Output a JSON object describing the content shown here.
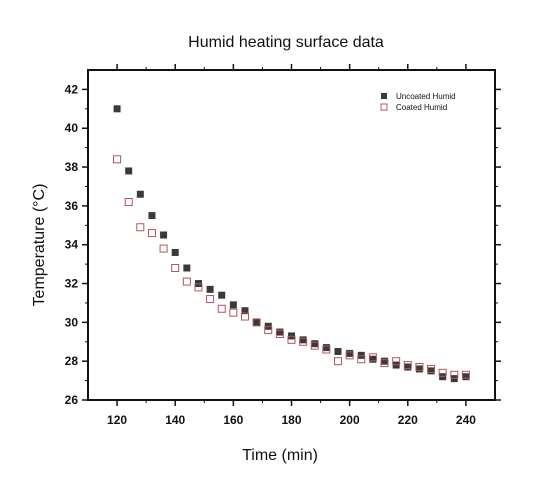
{
  "chart_data": {
    "type": "scatter",
    "title": "Humid heating surface data",
    "xlabel": "Time (min)",
    "ylabel": "Temperature (°C)",
    "xlim": [
      110,
      250
    ],
    "ylim": [
      26,
      43
    ],
    "xticks": [
      120,
      140,
      160,
      180,
      200,
      220,
      240
    ],
    "yticks": [
      26,
      28,
      30,
      32,
      34,
      36,
      38,
      40,
      42
    ],
    "grid": false,
    "legend_position": "top-right",
    "series": [
      {
        "name": "Uncoated Humid",
        "marker": "filled-square",
        "color": "#3a3a3a",
        "x": [
          120,
          124,
          128,
          132,
          136,
          140,
          144,
          148,
          152,
          156,
          160,
          164,
          168,
          172,
          176,
          180,
          184,
          188,
          192,
          196,
          200,
          204,
          208,
          212,
          216,
          220,
          224,
          228,
          232,
          236,
          240
        ],
        "y": [
          41.0,
          37.8,
          36.6,
          35.5,
          34.5,
          33.6,
          32.8,
          32.0,
          31.7,
          31.4,
          30.9,
          30.6,
          30.0,
          29.8,
          29.5,
          29.3,
          29.1,
          28.9,
          28.7,
          28.5,
          28.4,
          28.3,
          28.1,
          28.0,
          27.8,
          27.7,
          27.6,
          27.5,
          27.2,
          27.1,
          27.2
        ]
      },
      {
        "name": "Coated Humid",
        "marker": "open-square",
        "color": "#b0575b",
        "x": [
          120,
          124,
          128,
          132,
          136,
          140,
          144,
          148,
          152,
          156,
          160,
          164,
          168,
          172,
          176,
          180,
          184,
          188,
          192,
          196,
          200,
          204,
          208,
          212,
          216,
          220,
          224,
          228,
          232,
          236,
          240
        ],
        "y": [
          38.4,
          36.2,
          34.9,
          34.6,
          33.8,
          32.8,
          32.1,
          31.8,
          31.2,
          30.7,
          30.5,
          30.3,
          30.0,
          29.6,
          29.4,
          29.1,
          29.0,
          28.8,
          28.6,
          28.0,
          28.3,
          28.1,
          28.2,
          27.9,
          28.0,
          27.8,
          27.7,
          27.6,
          27.4,
          27.3,
          27.3
        ]
      }
    ]
  }
}
